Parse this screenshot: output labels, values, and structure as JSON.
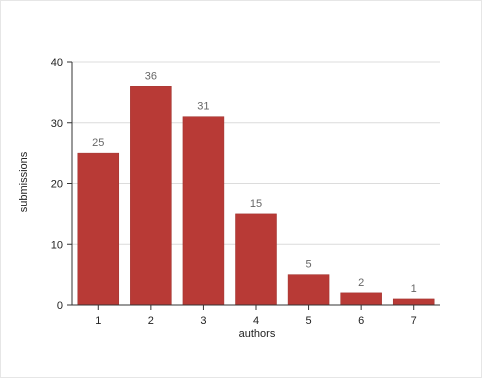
{
  "chart_data": {
    "type": "bar",
    "categories": [
      "1",
      "2",
      "3",
      "4",
      "5",
      "6",
      "7"
    ],
    "values": [
      25,
      36,
      31,
      15,
      5,
      2,
      1
    ],
    "data_labels": [
      "25",
      "36",
      "31",
      "15",
      "5",
      "2",
      "1"
    ],
    "title": "",
    "xlabel": "authors",
    "ylabel": "submissions",
    "ylim": [
      0,
      40
    ],
    "yticks": [
      0,
      10,
      20,
      30,
      40
    ],
    "ytick_labels": [
      "0",
      "10",
      "20",
      "30",
      "40"
    ],
    "grid": "horizontal",
    "legend": "none",
    "bar_color": "#b83a36",
    "bar_edge_color": "#9e2f2b"
  }
}
